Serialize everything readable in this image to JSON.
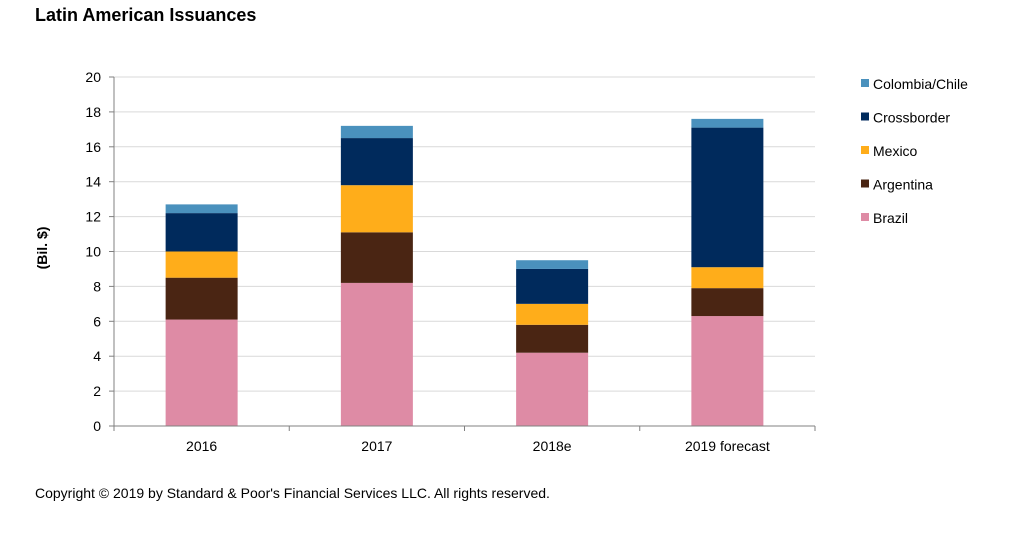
{
  "title": "Latin American Issuances",
  "copyright": "Copyright © 2019 by Standard & Poor's Financial Services LLC. All rights reserved.",
  "chart_data": {
    "type": "bar",
    "stacked": true,
    "title": "Latin American Issuances",
    "xlabel": "",
    "ylabel": "(Bil. $)",
    "ylim": [
      0,
      20
    ],
    "yticks": [
      0,
      2,
      4,
      6,
      8,
      10,
      12,
      14,
      16,
      18,
      20
    ],
    "grid": true,
    "legend_position": "right",
    "categories": [
      "2016",
      "2017",
      "2018e",
      "2019 forecast"
    ],
    "series": [
      {
        "name": "Brazil",
        "color": "#de8ba5",
        "values": [
          6.1,
          8.2,
          4.2,
          6.3
        ]
      },
      {
        "name": "Argentina",
        "color": "#4a2513",
        "values": [
          2.4,
          2.9,
          1.6,
          1.6
        ]
      },
      {
        "name": "Mexico",
        "color": "#ffad1a",
        "values": [
          1.5,
          2.7,
          1.2,
          1.2
        ]
      },
      {
        "name": "Crossborder",
        "color": "#002a5c",
        "values": [
          2.2,
          2.7,
          2.0,
          8.0
        ]
      },
      {
        "name": "Colombia/Chile",
        "color": "#4a91bd",
        "values": [
          0.5,
          0.7,
          0.5,
          0.5
        ]
      }
    ],
    "legend_order": [
      "Colombia/Chile",
      "Crossborder",
      "Mexico",
      "Argentina",
      "Brazil"
    ]
  }
}
